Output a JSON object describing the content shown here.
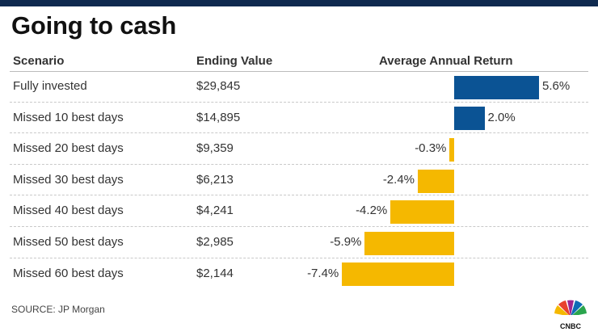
{
  "title": "Going to cash",
  "headers": {
    "scenario": "Scenario",
    "ending_value": "Ending Value",
    "return": "Average Annual Return"
  },
  "source": "SOURCE: JP Morgan",
  "logo_text": "CNBC",
  "colors": {
    "positive": "#0b5394",
    "negative": "#f5b800",
    "topbar": "#0f2a4f"
  },
  "chart_data": {
    "type": "bar",
    "orientation": "horizontal",
    "categories": [
      "Fully invested",
      "Missed 10 best days",
      "Missed 20 best days",
      "Missed 30 best days",
      "Missed 40 best days",
      "Missed 50 best days",
      "Missed 60 best days"
    ],
    "ending_values": [
      "$29,845",
      "$14,895",
      "$9,359",
      "$6,213",
      "$4,241",
      "$2,985",
      "$2,144"
    ],
    "values": [
      5.6,
      2.0,
      -0.3,
      -2.4,
      -4.2,
      -5.9,
      -7.4
    ],
    "value_labels": [
      "5.6%",
      "2.0%",
      "-0.3%",
      "-2.4%",
      "-4.2%",
      "-5.9%",
      "-7.4%"
    ],
    "xlim": [
      -7.4,
      5.6
    ],
    "grid": false,
    "legend": "none"
  }
}
